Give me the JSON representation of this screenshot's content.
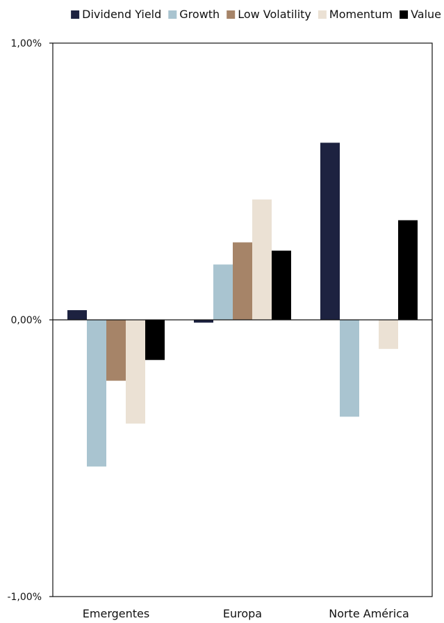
{
  "chart_data": {
    "type": "bar",
    "title": "",
    "xlabel": "",
    "ylabel": "",
    "categories": [
      "Emergentes",
      "Europa",
      "Norte América"
    ],
    "series": [
      {
        "name": "Dividend Yield",
        "color": "#1d2240",
        "values": [
          0.035,
          -0.01,
          0.64
        ]
      },
      {
        "name": "Growth",
        "color": "#a9c4d0",
        "values": [
          -0.53,
          0.2,
          -0.35
        ]
      },
      {
        "name": "Low Volatility",
        "color": "#a68468",
        "values": [
          -0.22,
          0.28,
          0.0
        ]
      },
      {
        "name": "Momentum",
        "color": "#ebe1d4",
        "values": [
          -0.375,
          0.435,
          -0.105
        ]
      },
      {
        "name": "Value",
        "color": "#000000",
        "values": [
          -0.145,
          0.25,
          0.36
        ]
      }
    ],
    "ylim": [
      -1.0,
      1.0
    ],
    "yticks": [
      "1,00%",
      "0,00%",
      "-1,00%"
    ],
    "ytick_values": [
      1.0,
      0.0,
      -1.0
    ],
    "legend_position": "top",
    "grid": false
  }
}
